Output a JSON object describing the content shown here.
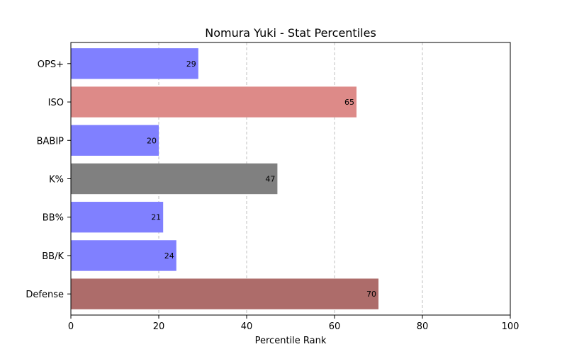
{
  "chart_data": {
    "type": "bar",
    "orientation": "horizontal",
    "title": "Nomura Yuki - Stat Percentiles",
    "xlabel": "Percentile Rank",
    "ylabel": "",
    "xlim": [
      0,
      100
    ],
    "xticks": [
      0,
      20,
      40,
      60,
      80,
      100
    ],
    "grid": "x-dashed",
    "categories": [
      "OPS+",
      "ISO",
      "BABIP",
      "K%",
      "BB%",
      "BB/K",
      "Defense"
    ],
    "values": [
      29,
      65,
      20,
      47,
      21,
      24,
      70
    ],
    "colors": [
      "#8080ff",
      "#dd8a88",
      "#8080ff",
      "#808080",
      "#8080ff",
      "#8080ff",
      "#ad6c6a"
    ]
  }
}
